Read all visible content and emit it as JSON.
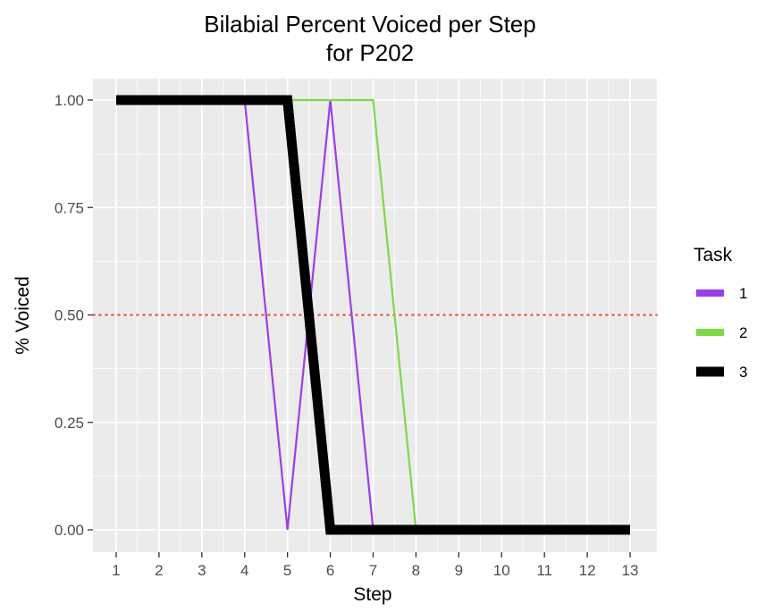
{
  "chart_data": {
    "type": "line",
    "title": [
      "Bilabial Percent Voiced per Step",
      "for P202"
    ],
    "xlabel": "Step",
    "ylabel": "% Voiced",
    "x": [
      1,
      2,
      3,
      4,
      5,
      6,
      7,
      8,
      9,
      10,
      11,
      12,
      13
    ],
    "xlim": [
      1,
      13
    ],
    "ylim": [
      0,
      1
    ],
    "yticks": [
      "0.00",
      "0.25",
      "0.50",
      "0.75",
      "1.00"
    ],
    "grid": true,
    "reference_line": {
      "y": 0.5,
      "style": "dotted",
      "color": "#e8513a"
    },
    "legend": {
      "title": "Task",
      "position": "right"
    },
    "series": [
      {
        "name": "1",
        "color": "#9b3ee8",
        "weight": "thin",
        "values": [
          1,
          1,
          1,
          1,
          0,
          1,
          0,
          0,
          0,
          0,
          0,
          0,
          0
        ]
      },
      {
        "name": "2",
        "color": "#7ed84a",
        "weight": "thin",
        "values": [
          1,
          1,
          1,
          1,
          1,
          1,
          1,
          0,
          0,
          0,
          0,
          0,
          0
        ]
      },
      {
        "name": "3",
        "color": "#000000",
        "weight": "thick",
        "values": [
          1,
          1,
          1,
          1,
          1,
          0,
          0,
          0,
          0,
          0,
          0,
          0,
          0
        ]
      }
    ]
  }
}
